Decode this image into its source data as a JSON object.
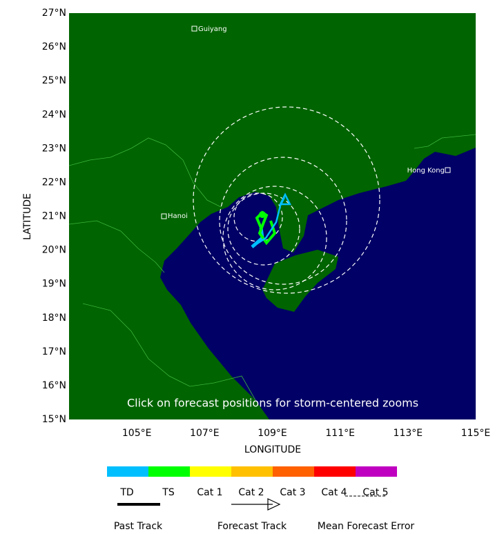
{
  "map": {
    "xlabel": "LONGITUDE",
    "ylabel": "LATITUDE",
    "xlim": [
      103,
      115
    ],
    "ylim": [
      15,
      27
    ],
    "xticks": [
      {
        "value": 105,
        "label": "105°E"
      },
      {
        "value": 107,
        "label": "107°E"
      },
      {
        "value": 109,
        "label": "109°E"
      },
      {
        "value": 111,
        "label": "111°E"
      },
      {
        "value": 113,
        "label": "113°E"
      },
      {
        "value": 115,
        "label": "115°E"
      }
    ],
    "yticks": [
      {
        "value": 15,
        "label": "15°N"
      },
      {
        "value": 16,
        "label": "16°N"
      },
      {
        "value": 17,
        "label": "17°N"
      },
      {
        "value": 18,
        "label": "18°N"
      },
      {
        "value": 19,
        "label": "19°N"
      },
      {
        "value": 20,
        "label": "20°N"
      },
      {
        "value": 21,
        "label": "21°N"
      },
      {
        "value": 22,
        "label": "22°N"
      },
      {
        "value": 23,
        "label": "23°N"
      },
      {
        "value": 24,
        "label": "24°N"
      },
      {
        "value": 25,
        "label": "25°N"
      },
      {
        "value": 26,
        "label": "26°N"
      },
      {
        "value": 27,
        "label": "27°N"
      }
    ],
    "cities": [
      "Guiyang",
      "Hanoi",
      "Hong Kong"
    ],
    "note": "Click on forecast positions for storm-centered zooms"
  },
  "legend": {
    "intensity": [
      "TD",
      "TS",
      "Cat 1",
      "Cat 2",
      "Cat 3",
      "Cat 4",
      "Cat 5"
    ],
    "tracks": [
      "Past Track",
      "Forecast Track",
      "Mean Forecast Error"
    ]
  }
}
